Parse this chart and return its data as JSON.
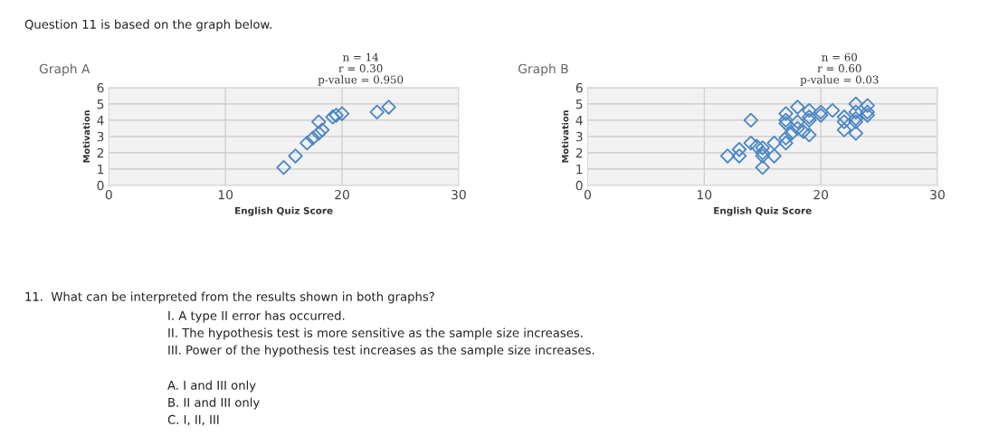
{
  "chart_data": [
    {
      "type": "scatter",
      "title": "Graph A",
      "xlabel": "English Quiz Score",
      "ylabel": "Motivation",
      "xlim": [
        0,
        30
      ],
      "xticks": [
        0,
        10,
        20,
        30
      ],
      "ylim": [
        0,
        6
      ],
      "yticks": [
        0,
        1,
        2,
        3,
        4,
        5,
        6
      ],
      "grid": true,
      "marker": "diamond",
      "annotations": [
        "n = 14",
        "r = 0.30",
        "p-value = 0.950"
      ],
      "series": [
        {
          "color": "#4a86c5",
          "x": [
            15,
            16,
            17,
            17.5,
            18,
            18.3,
            18,
            19.2,
            19.5,
            20,
            23,
            24
          ],
          "values": [
            1.1,
            1.8,
            2.6,
            2.9,
            3.2,
            3.4,
            3.9,
            4.2,
            4.3,
            4.4,
            4.5,
            4.8
          ]
        }
      ]
    },
    {
      "type": "scatter",
      "title": "Graph B",
      "xlabel": "English Quiz Score",
      "ylabel": "Motivation",
      "xlim": [
        0,
        30
      ],
      "xticks": [
        0,
        10,
        20,
        30
      ],
      "ylim": [
        0,
        6
      ],
      "yticks": [
        0,
        1,
        2,
        3,
        4,
        5,
        6
      ],
      "grid": true,
      "marker": "diamond",
      "annotations": [
        "n = 60",
        "r = 0.60",
        "p-value = 0.03"
      ],
      "series": [
        {
          "color": "#4a86c5",
          "x": [
            12,
            13,
            13,
            14,
            14,
            14.5,
            15,
            15,
            15,
            15,
            16,
            16,
            17,
            17,
            17,
            17,
            17,
            17.5,
            18,
            18,
            18,
            18.5,
            19,
            19,
            19,
            19,
            20,
            21,
            22,
            22,
            22,
            23,
            23,
            23,
            23,
            23,
            24,
            24,
            24,
            20
          ],
          "values": [
            1.8,
            1.8,
            2.2,
            2.6,
            4.0,
            2.4,
            2.3,
            2.0,
            1.8,
            1.1,
            1.8,
            2.6,
            2.6,
            2.9,
            3.8,
            4.0,
            4.4,
            3.2,
            3.5,
            3.9,
            4.8,
            3.3,
            3.1,
            4.0,
            4.2,
            4.6,
            4.5,
            4.6,
            3.4,
            3.9,
            4.2,
            3.2,
            3.9,
            4.1,
            4.5,
            5.0,
            4.3,
            4.5,
            4.9,
            4.3
          ]
        }
      ]
    },
    {
      "type": "other",
      "title": "Question 11 is based on the graph below.",
      "annotations": [
        "11.  What can be interpreted from the results shown in both graphs?",
        "I. A type II error has occurred.",
        "II. The hypothesis test is more sensitive as the sample size increases.",
        "III. Power of the hypothesis test increases as the sample size increases.",
        "A. I and III only",
        "B. II and III only",
        "C. I, II, III"
      ]
    }
  ]
}
